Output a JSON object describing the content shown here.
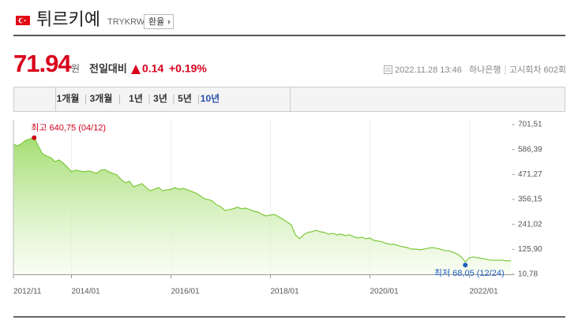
{
  "header": {
    "title": "튀르키예",
    "code": "TRYKRW",
    "button": "환율"
  },
  "quote": {
    "price": 71.94,
    "unit": "원",
    "change_label": "전일대비",
    "change": 0.14,
    "change_pct": "+0.19%",
    "datetime": "2022.11.28 13:46",
    "bank": "하나은행",
    "round": "고시회차 602회"
  },
  "tabs": [
    "1개월",
    "3개월",
    "1년",
    "3년",
    "5년",
    "10년"
  ],
  "active_tab": 5,
  "chart_data": {
    "type": "area",
    "color": "#7cc93a",
    "x": [
      "2012/11",
      "2012/12",
      "2013/01",
      "2013/02",
      "2013/03",
      "2013/04",
      "2013/05",
      "2013/06",
      "2013/07",
      "2013/08",
      "2013/09",
      "2013/10",
      "2013/11",
      "2013/12",
      "2014/01",
      "2014/02",
      "2014/03",
      "2014/04",
      "2014/05",
      "2014/06",
      "2014/07",
      "2014/08",
      "2014/09",
      "2014/10",
      "2014/11",
      "2014/12",
      "2015/01",
      "2015/02",
      "2015/03",
      "2015/04",
      "2015/05",
      "2015/06",
      "2015/07",
      "2015/08",
      "2015/09",
      "2015/10",
      "2015/11",
      "2015/12",
      "2016/01",
      "2016/02",
      "2016/03",
      "2016/04",
      "2016/05",
      "2016/06",
      "2016/07",
      "2016/08",
      "2016/09",
      "2016/10",
      "2016/11",
      "2016/12",
      "2017/01",
      "2017/02",
      "2017/03",
      "2017/04",
      "2017/05",
      "2017/06",
      "2017/07",
      "2017/08",
      "2017/09",
      "2017/10",
      "2017/11",
      "2017/12",
      "2018/01",
      "2018/02",
      "2018/03",
      "2018/04",
      "2018/05",
      "2018/06",
      "2018/07",
      "2018/08",
      "2018/09",
      "2018/10",
      "2018/11",
      "2018/12",
      "2019/01",
      "2019/02",
      "2019/03",
      "2019/04",
      "2019/05",
      "2019/06",
      "2019/07",
      "2019/08",
      "2019/09",
      "2019/10",
      "2019/11",
      "2019/12",
      "2020/01",
      "2020/02",
      "2020/03",
      "2020/04",
      "2020/05",
      "2020/06",
      "2020/07",
      "2020/08",
      "2020/09",
      "2020/10",
      "2020/11",
      "2020/12",
      "2021/01",
      "2021/02",
      "2021/03",
      "2021/04",
      "2021/05",
      "2021/06",
      "2021/07",
      "2021/08",
      "2021/09",
      "2021/10",
      "2021/11",
      "2021/12",
      "2022/01",
      "2022/02",
      "2022/03",
      "2022/04",
      "2022/05",
      "2022/06",
      "2022/07",
      "2022/08",
      "2022/09",
      "2022/10",
      "2022/11"
    ],
    "values": [
      611,
      603,
      614,
      629,
      635,
      640.75,
      603,
      567,
      556,
      549,
      531,
      538,
      524,
      505,
      484,
      491,
      487,
      484,
      487,
      484,
      476,
      491,
      494,
      484,
      476,
      469,
      447,
      433,
      440,
      414,
      422,
      429,
      411,
      396,
      403,
      411,
      396,
      400,
      403,
      411,
      403,
      407,
      400,
      393,
      385,
      374,
      360,
      356,
      349,
      331,
      323,
      305,
      309,
      313,
      320,
      313,
      316,
      309,
      302,
      298,
      287,
      280,
      284,
      287,
      276,
      265,
      251,
      240,
      193,
      175,
      193,
      204,
      207,
      214,
      207,
      204,
      196,
      200,
      193,
      196,
      189,
      193,
      185,
      178,
      182,
      175,
      178,
      167,
      164,
      160,
      153,
      149,
      149,
      142,
      138,
      134,
      127,
      127,
      124,
      127,
      131,
      134,
      131,
      127,
      120,
      120,
      113,
      105,
      91,
      68.05,
      87,
      91,
      87,
      84,
      80,
      76,
      76,
      76,
      76,
      73,
      73
    ],
    "ylim": [
      10.78,
      701.51
    ],
    "yticks": [
      {
        "value": 701.51,
        "label": "701,51"
      },
      {
        "value": 586.39,
        "label": "586,39"
      },
      {
        "value": 471.27,
        "label": "471,27"
      },
      {
        "value": 356.15,
        "label": "356,15"
      },
      {
        "value": 241.02,
        "label": "241,02"
      },
      {
        "value": 125.9,
        "label": "125,90"
      },
      {
        "value": 10.78,
        "label": "10,78"
      }
    ],
    "xticks": [
      "2012/11",
      "2014/01",
      "2016/01",
      "2018/01",
      "2020/01",
      "2022/01"
    ],
    "annotations": [
      {
        "label": "최고 640,75 (04/12)",
        "value": 640.75,
        "color": "#d0021b"
      },
      {
        "label": "최저 68,05 (12/24)",
        "value": 68.05,
        "color": "#1f5fbf"
      }
    ]
  }
}
